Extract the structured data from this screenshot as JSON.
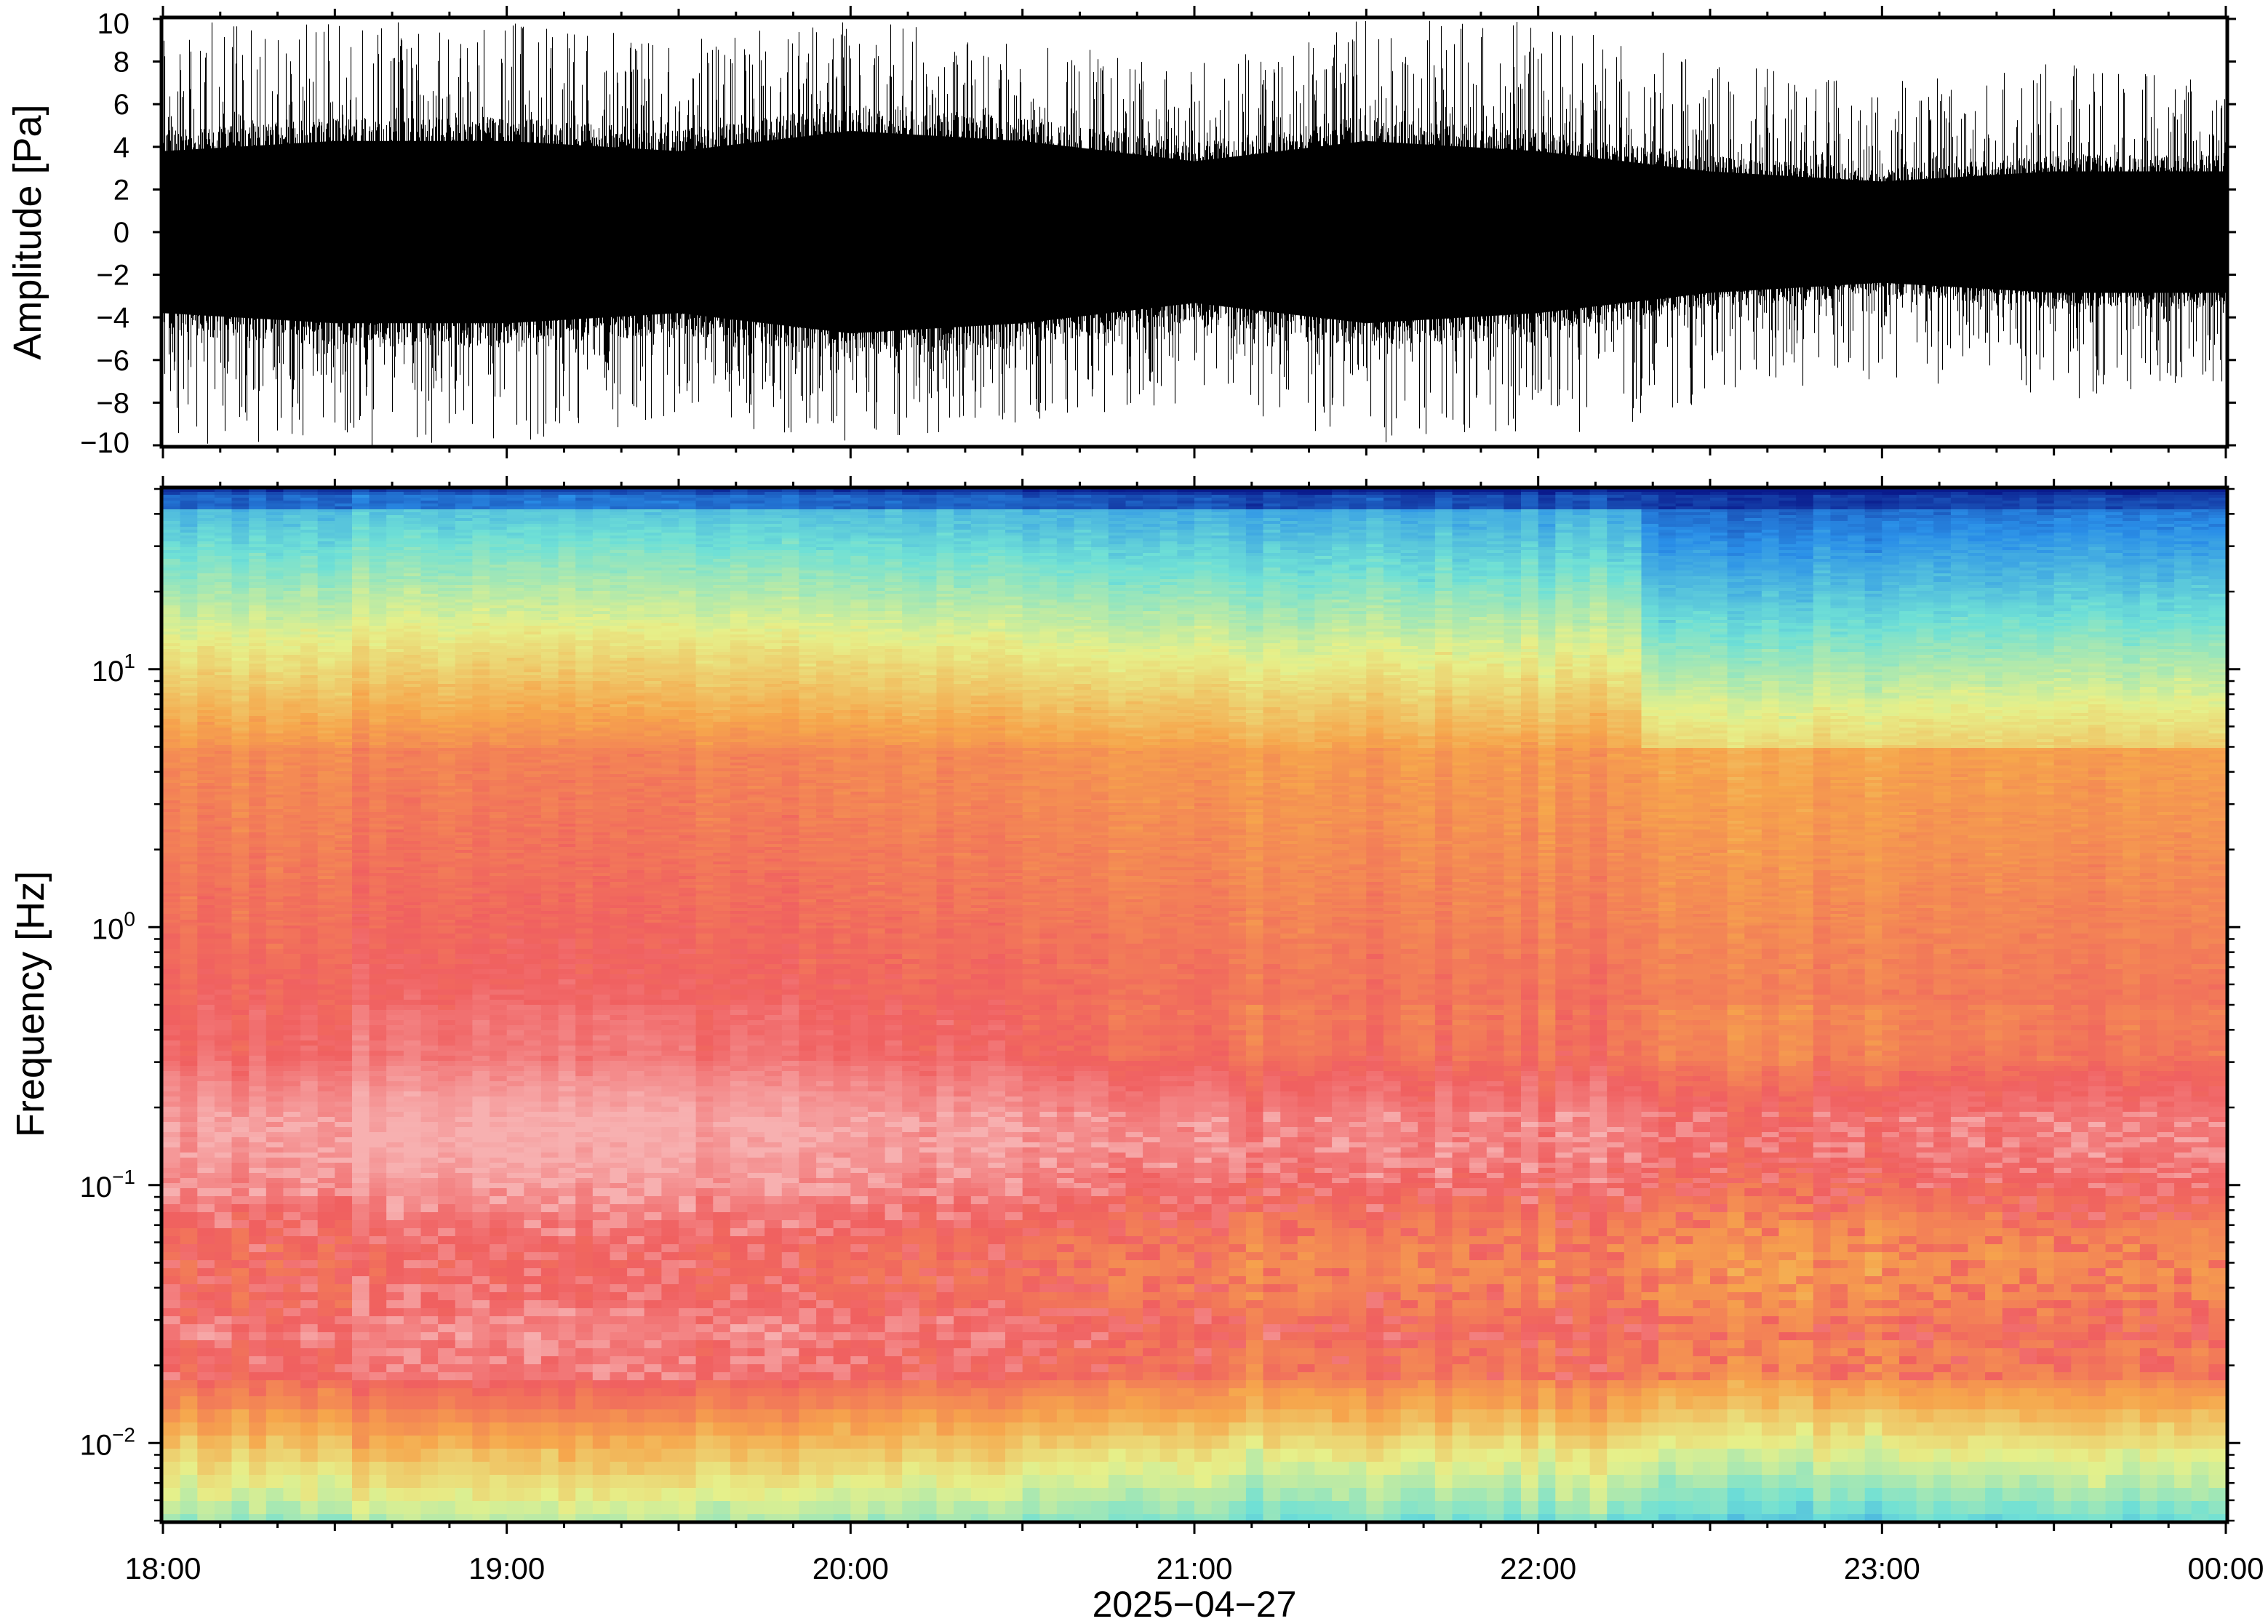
{
  "chart_data": [
    {
      "type": "line",
      "panel": "waveform",
      "ylabel": "Amplitude [Pa]",
      "ylim": [
        -10,
        10
      ],
      "yticks": [
        10,
        8,
        6,
        4,
        2,
        0,
        -2,
        -4,
        -6,
        -8,
        -10
      ],
      "ytick_labels": [
        "10",
        "8",
        "6",
        "4",
        "2",
        "0",
        "−2",
        "−4",
        "−6",
        "−8",
        "−10"
      ],
      "xlim": [
        "2025-04-27 18:00",
        "2025-04-28 00:00"
      ],
      "envelope": {
        "x": [
          "18:00",
          "18:30",
          "19:00",
          "19:30",
          "20:00",
          "20:30",
          "21:00",
          "21:30",
          "22:00",
          "22:30",
          "23:00",
          "23:30",
          "00:00"
        ],
        "typical_peak": [
          4.0,
          4.5,
          4.5,
          4.0,
          5.0,
          4.5,
          3.5,
          4.5,
          4.0,
          3.0,
          2.5,
          3.0,
          3.0
        ],
        "max_spike": [
          10,
          10,
          10,
          9,
          10,
          9,
          8,
          10,
          10,
          8,
          7,
          8,
          7
        ]
      },
      "color": "#000000"
    },
    {
      "type": "heatmap",
      "panel": "spectrogram",
      "ylabel": "Frequency [Hz]",
      "yscale": "log",
      "ylim": [
        0.005,
        50
      ],
      "yticks": [
        0.01,
        0.1,
        1,
        10
      ],
      "ytick_labels": [
        {
          "base": "10",
          "exp": "−2"
        },
        {
          "base": "10",
          "exp": "−1"
        },
        {
          "base": "10",
          "exp": "0"
        },
        {
          "base": "10",
          "exp": "1"
        }
      ],
      "xlim": [
        "2025-04-27 18:00",
        "2025-04-28 00:00"
      ],
      "xticks": [
        "18:00",
        "19:00",
        "20:00",
        "21:00",
        "22:00",
        "23:00",
        "00:00"
      ],
      "xlabel": "2025−04−27",
      "colormap_stops": [
        "#0a1a8c",
        "#2a8fe8",
        "#6fe0d6",
        "#e6f08a",
        "#f6a64c",
        "#f06060",
        "#f7b0b0"
      ],
      "colors": {
        "frame": "#000000"
      }
    }
  ]
}
